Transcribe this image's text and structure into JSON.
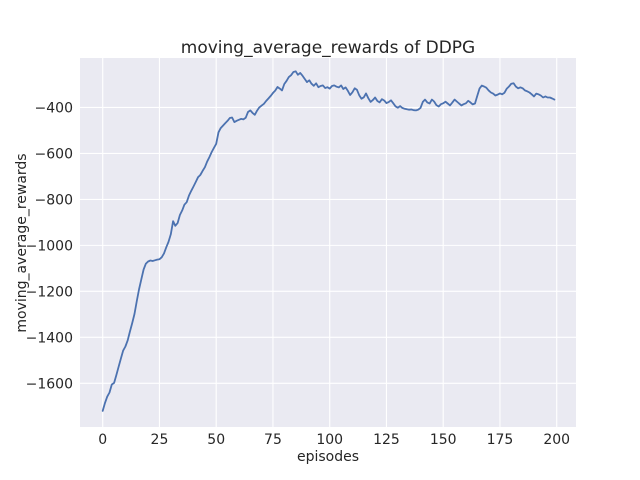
{
  "chart_data": {
    "type": "line",
    "title": "moving_average_rewards of DDPG",
    "xlabel": "episodes",
    "ylabel": "moving_average_rewards",
    "x_ticks": [
      0,
      25,
      50,
      75,
      100,
      125,
      150,
      175,
      200
    ],
    "y_ticks": [
      -400,
      -600,
      -800,
      -1000,
      -1200,
      -1400,
      -1600
    ],
    "xlim": [
      -10,
      208.5
    ],
    "ylim": [
      -1790,
      -185
    ],
    "grid": true,
    "legend": "none",
    "x_start": 0,
    "x_step": 1,
    "series": [
      {
        "name": "moving_average_rewards",
        "values": [
          -1720,
          -1685,
          -1658,
          -1640,
          -1605,
          -1598,
          -1565,
          -1528,
          -1492,
          -1458,
          -1440,
          -1413,
          -1375,
          -1338,
          -1298,
          -1242,
          -1192,
          -1148,
          -1105,
          -1080,
          -1070,
          -1066,
          -1068,
          -1065,
          -1062,
          -1060,
          -1052,
          -1035,
          -1008,
          -985,
          -952,
          -895,
          -915,
          -903,
          -868,
          -848,
          -823,
          -812,
          -783,
          -763,
          -744,
          -724,
          -704,
          -694,
          -676,
          -660,
          -636,
          -616,
          -594,
          -576,
          -558,
          -508,
          -490,
          -479,
          -468,
          -458,
          -446,
          -444,
          -464,
          -458,
          -454,
          -450,
          -452,
          -445,
          -420,
          -413,
          -424,
          -432,
          -414,
          -400,
          -392,
          -384,
          -372,
          -361,
          -350,
          -337,
          -327,
          -311,
          -318,
          -326,
          -298,
          -284,
          -268,
          -260,
          -246,
          -243,
          -258,
          -250,
          -262,
          -276,
          -290,
          -282,
          -297,
          -306,
          -295,
          -312,
          -307,
          -304,
          -316,
          -312,
          -318,
          -307,
          -304,
          -310,
          -313,
          -304,
          -320,
          -313,
          -328,
          -346,
          -334,
          -317,
          -323,
          -347,
          -362,
          -356,
          -339,
          -360,
          -376,
          -368,
          -357,
          -372,
          -378,
          -364,
          -370,
          -381,
          -377,
          -369,
          -382,
          -395,
          -401,
          -394,
          -402,
          -406,
          -408,
          -410,
          -409,
          -412,
          -413,
          -410,
          -402,
          -376,
          -366,
          -378,
          -383,
          -366,
          -374,
          -390,
          -396,
          -386,
          -382,
          -375,
          -383,
          -391,
          -379,
          -366,
          -374,
          -383,
          -391,
          -386,
          -382,
          -371,
          -378,
          -387,
          -383,
          -349,
          -318,
          -305,
          -309,
          -314,
          -326,
          -335,
          -340,
          -348,
          -344,
          -339,
          -343,
          -336,
          -318,
          -309,
          -297,
          -295,
          -309,
          -317,
          -313,
          -317,
          -326,
          -330,
          -335,
          -343,
          -352,
          -340,
          -343,
          -348,
          -357,
          -352,
          -357,
          -357,
          -361,
          -366
        ]
      }
    ],
    "colors": {
      "line": "#4C72B0",
      "plot_background": "#EAEAF2",
      "gridline": "#FFFFFF",
      "text": "#262626",
      "figure_background": "#FFFFFF"
    }
  }
}
